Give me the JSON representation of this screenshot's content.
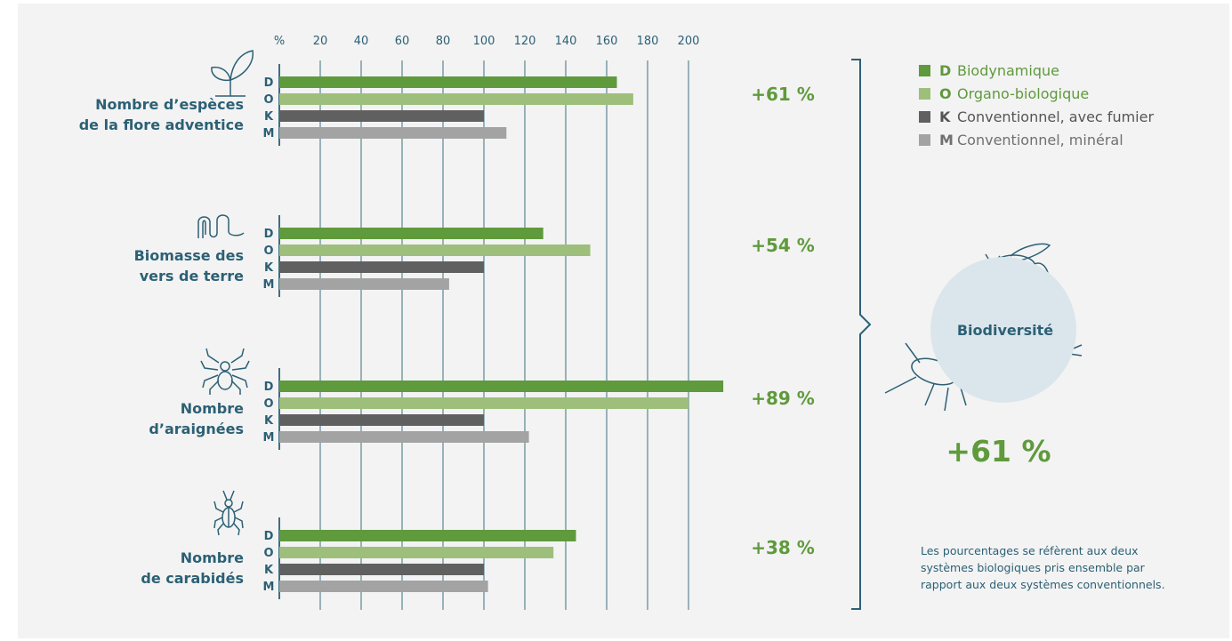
{
  "chart_data": {
    "type": "bar",
    "orientation": "horizontal",
    "axis": {
      "unit_label": "%",
      "ticks": [
        "20",
        "40",
        "60",
        "80",
        "100",
        "120",
        "140",
        "160",
        "180",
        "200"
      ],
      "xlim": [
        0,
        220
      ],
      "grid": true
    },
    "series": [
      {
        "code": "D",
        "name": "Biodynamique",
        "color": "#5f9a3c"
      },
      {
        "code": "O",
        "name": "Organo-biologique",
        "color": "#9dbf7b"
      },
      {
        "code": "K",
        "name": "Conventionnel, avec fumier",
        "color": "#606060"
      },
      {
        "code": "M",
        "name": "Conventionnel, minéral",
        "color": "#a3a3a3"
      }
    ],
    "groups": [
      {
        "label_line1": "Nombre d’espèces",
        "label_line2": "de la flore adventice",
        "icon": "plant-icon",
        "change": "+61 %",
        "values": [
          165,
          173,
          100,
          111
        ]
      },
      {
        "label_line1": "Biomasse des",
        "label_line2": "vers de terre",
        "icon": "worm-icon",
        "change": "+54 %",
        "values": [
          129,
          152,
          100,
          83
        ]
      },
      {
        "label_line1": "Nombre",
        "label_line2": "d’araignées",
        "icon": "spider-icon",
        "change": "+89 %",
        "values": [
          217,
          200,
          100,
          122
        ]
      },
      {
        "label_line1": "Nombre",
        "label_line2": "de carabidés",
        "icon": "beetle-icon",
        "change": "+38 %",
        "values": [
          145,
          134,
          100,
          102
        ]
      }
    ],
    "summary": {
      "label": "Biodiversité",
      "value": "+61 %"
    },
    "note": "Les pourcentages se réfèrent aux deux systèmes biologiques pris ensemble par rapport aux deux systèmes conventionnels."
  },
  "colors": {
    "text_blue": "#2c6075",
    "accent_green": "#5f9a3c",
    "grid": "#3d6f80",
    "panel": "#f3f3f3"
  }
}
